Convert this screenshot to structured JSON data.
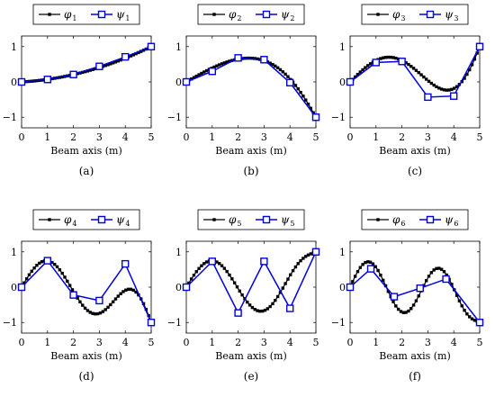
{
  "chart_data": [
    {
      "type": "line",
      "caption": "(a)",
      "xlabel": "Beam axis (m)",
      "ylabel": "",
      "xlim": [
        0,
        5
      ],
      "ylim": [
        -1.3,
        1.3
      ],
      "xticks": [
        0,
        1,
        2,
        3,
        4,
        5
      ],
      "yticks": [
        -1,
        0,
        1
      ],
      "legend": {
        "placement": "top",
        "entries": [
          "φ",
          "ψ"
        ],
        "subscripts": [
          "1",
          "1"
        ]
      },
      "series": [
        {
          "name": "φ1",
          "color": "#000000",
          "marker": "square-filled",
          "func": {
            "kind": "poly",
            "coeffs": [
              0,
              0.04,
              0.032
            ]
          }
        },
        {
          "name": "ψ1",
          "color": "#0000dd",
          "marker": "square-open",
          "x": [
            0,
            1,
            2,
            3,
            4,
            5
          ],
          "y": [
            0.0,
            0.07,
            0.21,
            0.44,
            0.71,
            1.0
          ]
        }
      ]
    },
    {
      "type": "line",
      "caption": "(b)",
      "xlabel": "Beam axis (m)",
      "ylabel": "",
      "xlim": [
        0,
        5
      ],
      "ylim": [
        -1.3,
        1.3
      ],
      "xticks": [
        0,
        1,
        2,
        3,
        4,
        5
      ],
      "yticks": [
        -1,
        0,
        1
      ],
      "legend": {
        "placement": "top",
        "entries": [
          "φ",
          "ψ"
        ],
        "subscripts": [
          "2",
          "2"
        ]
      },
      "series": [
        {
          "name": "φ2",
          "color": "#000000",
          "marker": "square-filled",
          "func": {
            "kind": "sin",
            "amp": 0.7,
            "k": 0.6
          }
        },
        {
          "name": "ψ2",
          "color": "#0000dd",
          "marker": "square-open",
          "x": [
            0,
            1,
            2,
            3,
            4,
            5
          ],
          "y": [
            0.0,
            0.3,
            0.68,
            0.63,
            -0.02,
            -1.0
          ]
        }
      ]
    },
    {
      "type": "line",
      "caption": "(c)",
      "xlabel": "Beam axis (m)",
      "ylabel": "",
      "xlim": [
        0,
        5
      ],
      "ylim": [
        -1.3,
        1.3
      ],
      "xticks": [
        0,
        1,
        2,
        3,
        4,
        5
      ],
      "yticks": [
        -1,
        0,
        1
      ],
      "legend": {
        "placement": "top",
        "entries": [
          "φ",
          "ψ"
        ],
        "subscripts": [
          "3",
          "3"
        ]
      },
      "series": [
        {
          "name": "φ3",
          "color": "#000000",
          "marker": "square-filled",
          "func": {
            "kind": "sin",
            "amp": 0.7,
            "k": 1.05
          }
        },
        {
          "name": "ψ3",
          "color": "#0000dd",
          "marker": "square-open",
          "x": [
            0,
            1,
            2,
            3,
            4,
            5
          ],
          "y": [
            0.0,
            0.55,
            0.58,
            -0.43,
            -0.4,
            1.0
          ]
        }
      ]
    },
    {
      "type": "line",
      "caption": "(d)",
      "xlabel": "Beam axis (m)",
      "ylabel": "",
      "xlim": [
        0,
        5
      ],
      "ylim": [
        -1.3,
        1.3
      ],
      "xticks": [
        0,
        1,
        2,
        3,
        4,
        5
      ],
      "yticks": [
        -1,
        0,
        1
      ],
      "legend": {
        "placement": "top",
        "entries": [
          "φ",
          "ψ"
        ],
        "subscripts": [
          "4",
          "4"
        ]
      },
      "series": [
        {
          "name": "φ4",
          "color": "#000000",
          "marker": "square-filled",
          "func": {
            "kind": "sin",
            "amp": 0.75,
            "k": 1.65
          }
        },
        {
          "name": "ψ4",
          "color": "#0000dd",
          "marker": "square-open",
          "x": [
            0,
            1,
            2,
            3,
            4,
            5
          ],
          "y": [
            0.0,
            0.75,
            -0.22,
            -0.38,
            0.66,
            -1.0
          ]
        }
      ]
    },
    {
      "type": "line",
      "caption": "(e)",
      "xlabel": "Beam axis (m)",
      "ylabel": "",
      "xlim": [
        0,
        5
      ],
      "ylim": [
        -1.3,
        1.3
      ],
      "xticks": [
        0,
        1,
        2,
        3,
        4,
        5
      ],
      "yticks": [
        -1,
        0,
        1
      ],
      "legend": {
        "placement": "top",
        "entries": [
          "φ",
          "ψ"
        ],
        "subscripts": [
          "5",
          "5"
        ]
      },
      "series": [
        {
          "name": "φ5",
          "color": "#000000",
          "marker": "square-filled",
          "func": {
            "kind": "sin",
            "amp": 0.75,
            "k": 1.6
          }
        },
        {
          "name": "ψ5",
          "color": "#0000dd",
          "marker": "square-open",
          "x": [
            0,
            1,
            2,
            3,
            4,
            5
          ],
          "y": [
            0.0,
            0.73,
            -0.73,
            0.73,
            -0.6,
            1.0
          ]
        }
      ]
    },
    {
      "type": "line",
      "caption": "(f)",
      "xlabel": "Beam axis (m)",
      "ylabel": "",
      "xlim": [
        0,
        5
      ],
      "ylim": [
        -1.3,
        1.3
      ],
      "xticks": [
        0,
        1,
        2,
        3,
        4,
        5
      ],
      "yticks": [
        -1,
        0,
        1
      ],
      "legend": {
        "placement": "top",
        "entries": [
          "φ",
          "ψ"
        ],
        "subscripts": [
          "6",
          "6"
        ]
      },
      "series": [
        {
          "name": "φ6",
          "color": "#000000",
          "marker": "square-filled",
          "func": {
            "kind": "sin",
            "amp": 0.72,
            "k": 2.25
          }
        },
        {
          "name": "ψ6",
          "color": "#0000dd",
          "marker": "square-open",
          "x": [
            0,
            0.8,
            1.7,
            2.7,
            3.7,
            5
          ],
          "y": [
            0.0,
            0.52,
            -0.27,
            -0.03,
            0.23,
            -1.0
          ]
        }
      ]
    }
  ]
}
